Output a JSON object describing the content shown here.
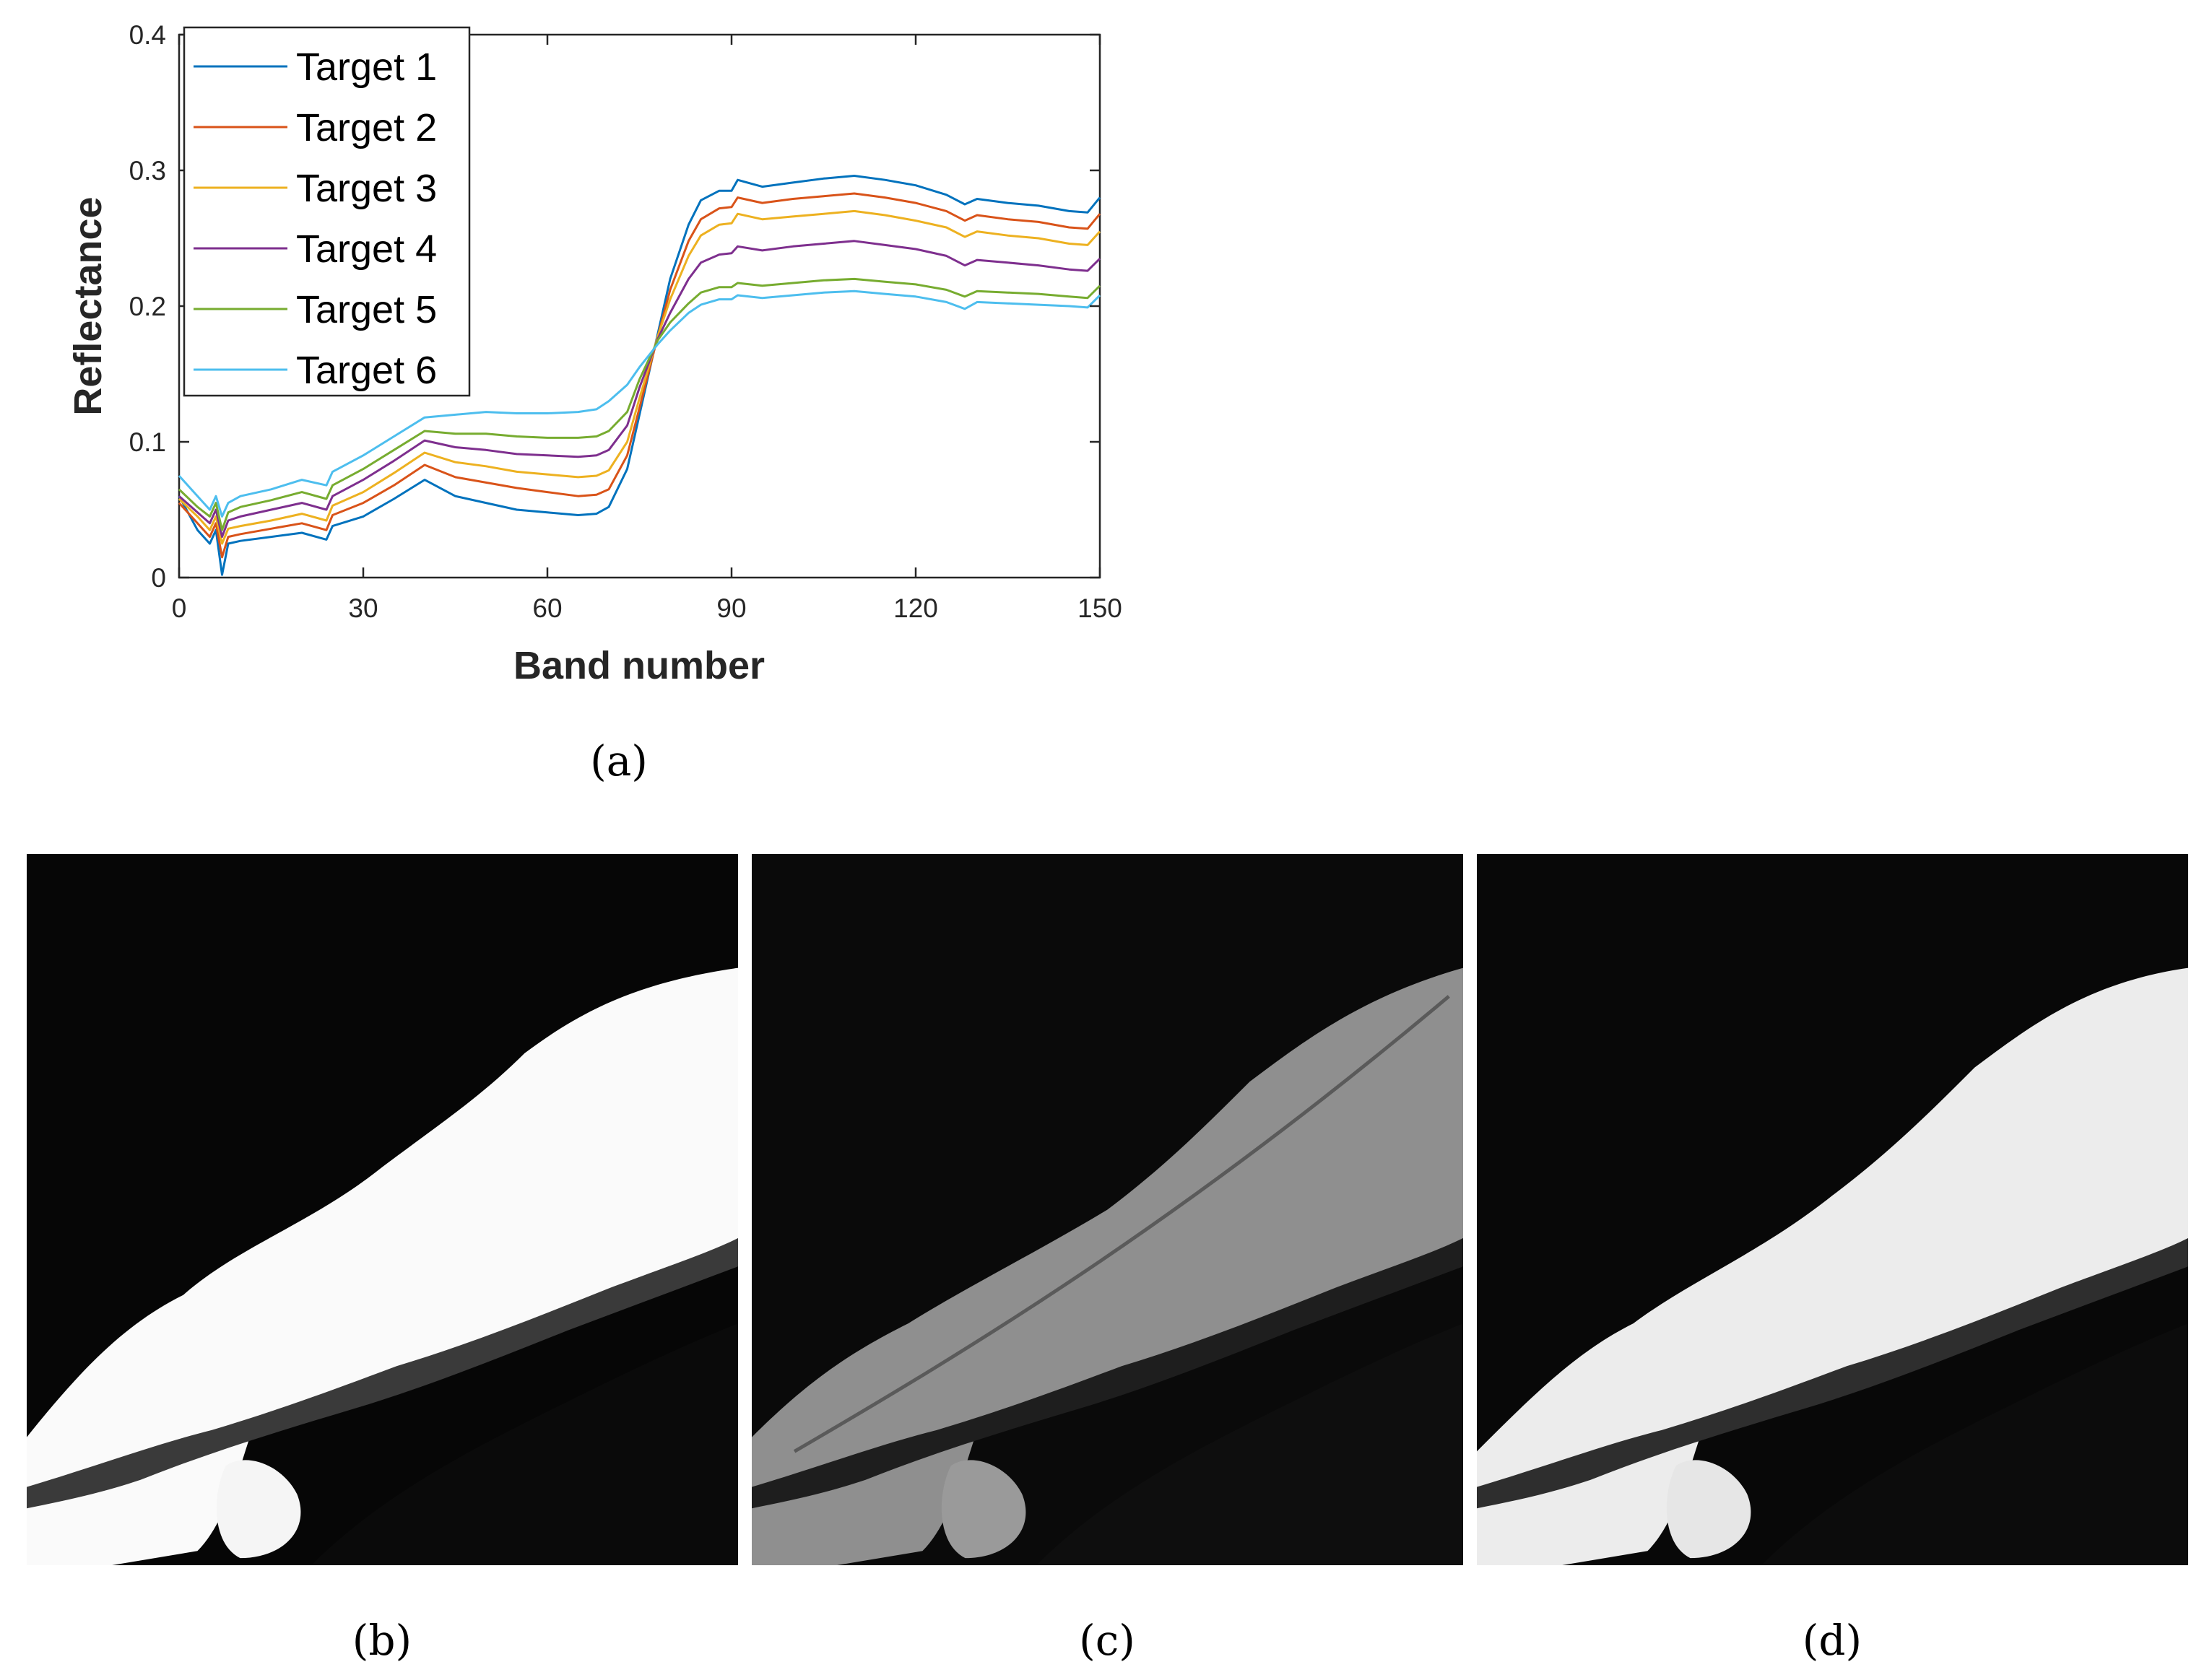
{
  "chart_data": {
    "type": "line",
    "xlabel": "Band number",
    "ylabel": "Reflectance",
    "xlim": [
      0,
      150
    ],
    "ylim": [
      0,
      0.4
    ],
    "xticks": [
      "0",
      "30",
      "60",
      "90",
      "120",
      "150"
    ],
    "yticks": [
      "0",
      "0.1",
      "0.2",
      "0.3",
      "0.4"
    ],
    "grid": false,
    "legend_position": "top-left",
    "x": [
      0,
      3,
      5,
      6,
      7,
      8,
      10,
      15,
      20,
      24,
      25,
      30,
      35,
      40,
      45,
      50,
      55,
      60,
      65,
      68,
      70,
      73,
      75,
      78,
      80,
      83,
      85,
      88,
      90,
      91,
      95,
      100,
      105,
      110,
      115,
      120,
      125,
      128,
      130,
      135,
      140,
      145,
      148,
      150
    ],
    "series": [
      {
        "name": "Target 1",
        "color": "#0072BD",
        "values": [
          0.06,
          0.035,
          0.025,
          0.035,
          0.002,
          0.025,
          0.027,
          0.03,
          0.033,
          0.028,
          0.038,
          0.045,
          0.058,
          0.072,
          0.06,
          0.055,
          0.05,
          0.048,
          0.046,
          0.047,
          0.052,
          0.08,
          0.12,
          0.18,
          0.22,
          0.26,
          0.278,
          0.285,
          0.285,
          0.293,
          0.288,
          0.291,
          0.294,
          0.296,
          0.293,
          0.289,
          0.282,
          0.275,
          0.279,
          0.276,
          0.274,
          0.27,
          0.269,
          0.28
        ]
      },
      {
        "name": "Target 2",
        "color": "#D95319",
        "values": [
          0.055,
          0.04,
          0.03,
          0.04,
          0.015,
          0.03,
          0.032,
          0.036,
          0.04,
          0.035,
          0.046,
          0.055,
          0.068,
          0.083,
          0.074,
          0.07,
          0.066,
          0.063,
          0.06,
          0.061,
          0.065,
          0.09,
          0.125,
          0.178,
          0.212,
          0.248,
          0.264,
          0.272,
          0.273,
          0.28,
          0.276,
          0.279,
          0.281,
          0.283,
          0.28,
          0.276,
          0.27,
          0.263,
          0.267,
          0.264,
          0.262,
          0.258,
          0.257,
          0.268
        ]
      },
      {
        "name": "Target 3",
        "color": "#EDB120",
        "values": [
          0.058,
          0.045,
          0.035,
          0.045,
          0.025,
          0.036,
          0.038,
          0.042,
          0.047,
          0.042,
          0.053,
          0.063,
          0.077,
          0.092,
          0.085,
          0.082,
          0.078,
          0.076,
          0.074,
          0.075,
          0.079,
          0.1,
          0.132,
          0.178,
          0.205,
          0.237,
          0.252,
          0.26,
          0.261,
          0.268,
          0.264,
          0.266,
          0.268,
          0.27,
          0.267,
          0.263,
          0.258,
          0.251,
          0.255,
          0.252,
          0.25,
          0.246,
          0.245,
          0.255
        ]
      },
      {
        "name": "Target 4",
        "color": "#7E2F8E",
        "values": [
          0.06,
          0.048,
          0.04,
          0.05,
          0.03,
          0.042,
          0.045,
          0.05,
          0.055,
          0.05,
          0.06,
          0.072,
          0.086,
          0.101,
          0.096,
          0.094,
          0.091,
          0.09,
          0.089,
          0.09,
          0.094,
          0.112,
          0.14,
          0.176,
          0.195,
          0.22,
          0.232,
          0.238,
          0.239,
          0.244,
          0.241,
          0.244,
          0.246,
          0.248,
          0.245,
          0.242,
          0.237,
          0.23,
          0.234,
          0.232,
          0.23,
          0.227,
          0.226,
          0.235
        ]
      },
      {
        "name": "Target 5",
        "color": "#77AC30",
        "values": [
          0.065,
          0.052,
          0.045,
          0.055,
          0.035,
          0.048,
          0.052,
          0.057,
          0.063,
          0.058,
          0.068,
          0.08,
          0.094,
          0.108,
          0.106,
          0.106,
          0.104,
          0.103,
          0.103,
          0.104,
          0.108,
          0.122,
          0.146,
          0.175,
          0.188,
          0.202,
          0.21,
          0.214,
          0.214,
          0.217,
          0.215,
          0.217,
          0.219,
          0.22,
          0.218,
          0.216,
          0.212,
          0.207,
          0.211,
          0.21,
          0.209,
          0.207,
          0.206,
          0.215
        ]
      },
      {
        "name": "Target 6",
        "color": "#4DBEEE",
        "values": [
          0.075,
          0.06,
          0.05,
          0.06,
          0.045,
          0.055,
          0.06,
          0.065,
          0.072,
          0.068,
          0.078,
          0.09,
          0.104,
          0.118,
          0.12,
          0.122,
          0.121,
          0.121,
          0.122,
          0.124,
          0.13,
          0.142,
          0.155,
          0.172,
          0.182,
          0.195,
          0.201,
          0.205,
          0.205,
          0.208,
          0.206,
          0.208,
          0.21,
          0.211,
          0.209,
          0.207,
          0.203,
          0.198,
          0.203,
          0.202,
          0.201,
          0.2,
          0.199,
          0.208
        ]
      }
    ]
  },
  "captions": {
    "a": "(a)",
    "b": "(b)",
    "c": "(c)",
    "d": "(d)"
  }
}
